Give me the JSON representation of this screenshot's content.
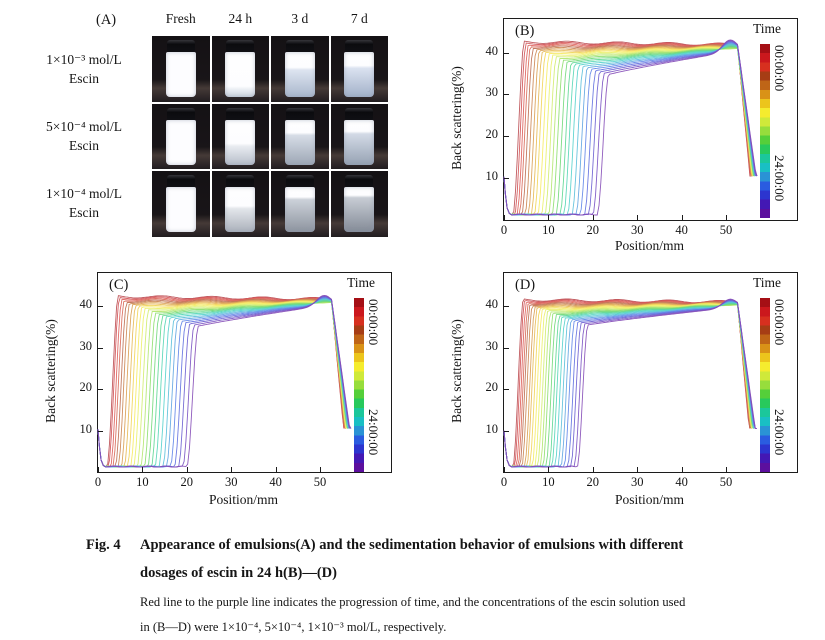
{
  "figure": {
    "background": "#ffffff"
  },
  "panelA": {
    "label": "(A)",
    "columns": [
      "Fresh",
      "24 h",
      "3 d",
      "7 d"
    ],
    "rows": [
      {
        "conc": "1×10⁻³ mol/L",
        "substance": "Escin",
        "cells": [
          {
            "cream": 100,
            "lower_top": "#ffffff",
            "lower_bottom": "#ffffff"
          },
          {
            "cream": 76,
            "lower_top": "#edf0f5",
            "lower_bottom": "#ccd4de"
          },
          {
            "cream": 34,
            "lower_top": "#dde4f0",
            "lower_bottom": "#a9b7cc"
          },
          {
            "cream": 30,
            "lower_top": "#dbe2f0",
            "lower_bottom": "#a2b1c9"
          }
        ]
      },
      {
        "conc": "5×10⁻⁴ mol/L",
        "substance": "Escin",
        "cells": [
          {
            "cream": 100,
            "lower_top": "#ffffff",
            "lower_bottom": "#ffffff"
          },
          {
            "cream": 52,
            "lower_top": "#e9ecf1",
            "lower_bottom": "#b6bdc9"
          },
          {
            "cream": 28,
            "lower_top": "#d6dce6",
            "lower_bottom": "#9da7b5"
          },
          {
            "cream": 25,
            "lower_top": "#d3dae6",
            "lower_bottom": "#96a2b3"
          }
        ]
      },
      {
        "conc": "1×10⁻⁴ mol/L",
        "substance": "Escin",
        "cells": [
          {
            "cream": 100,
            "lower_top": "#ffffff",
            "lower_bottom": "#ffffff"
          },
          {
            "cream": 42,
            "lower_top": "#e3e6eb",
            "lower_bottom": "#abb1bb"
          },
          {
            "cream": 22,
            "lower_top": "#ccd1d9",
            "lower_bottom": "#8d949f"
          },
          {
            "cream": 18,
            "lower_top": "#c7ccd4",
            "lower_bottom": "#848b97"
          }
        ]
      }
    ]
  },
  "colorbar": {
    "title": "Time",
    "top_label": "00:00:00",
    "bottom_label": "24:00:00",
    "colors": [
      "#a50f15",
      "#cb181d",
      "#d7301f",
      "#a63d15",
      "#bf6517",
      "#d99217",
      "#ecc51c",
      "#f5ec2e",
      "#cfe93a",
      "#97dd3c",
      "#55cf3a",
      "#28c95c",
      "#1bc79b",
      "#19bfc4",
      "#2a93d5",
      "#2a5ce0",
      "#2c35cf",
      "#4318b4",
      "#5c0f9e"
    ]
  },
  "chart_data": [
    {
      "id": "B",
      "type": "line",
      "label": "(B)",
      "xlabel": "Position/mm",
      "ylabel": "Back scattering(%)",
      "x_ticks": [
        0,
        10,
        20,
        30,
        40,
        50
      ],
      "y_ticks": [
        10,
        20,
        30,
        40
      ],
      "x_range_mm": [
        0,
        66
      ],
      "y_range_pct": [
        0,
        48
      ],
      "n_curves": 25,
      "time_span": [
        "00:00:00",
        "24:00:00"
      ],
      "curve_rise_x_mm": [
        2.0,
        2.4,
        2.9,
        3.4,
        4.0,
        4.7,
        5.4,
        6.1,
        6.8,
        7.6,
        8.4,
        9.2,
        10.0,
        10.8,
        11.7,
        12.6,
        13.4,
        14.3,
        15.3,
        16.2,
        17.1,
        18.1,
        19.0,
        20.0,
        21.0
      ],
      "model": {
        "spike_y": 10.3,
        "baseline": 1.3,
        "rise_width": 2.6,
        "plateau_first": 42.6,
        "plateau_last": 34.0,
        "converge_x": 50,
        "converge_y": 40.0,
        "bump_x": 51,
        "bump_amp": 3.0,
        "drop_start": 52.6,
        "end_first": 55.4,
        "end_last": 56.8,
        "end_y": 10.5
      }
    },
    {
      "id": "C",
      "type": "line",
      "label": "(C)",
      "xlabel": "Position/mm",
      "ylabel": "Back scattering(%)",
      "x_ticks": [
        0,
        10,
        20,
        30,
        40,
        50
      ],
      "y_ticks": [
        10,
        20,
        30,
        40
      ],
      "x_range_mm": [
        0,
        66
      ],
      "y_range_pct": [
        0,
        48
      ],
      "n_curves": 25,
      "time_span": [
        "00:00:00",
        "24:00:00"
      ],
      "curve_rise_x_mm": [
        2.0,
        2.3,
        2.8,
        3.3,
        3.9,
        4.5,
        5.2,
        5.9,
        6.6,
        7.3,
        8.0,
        8.8,
        9.6,
        10.4,
        11.2,
        12.0,
        12.8,
        13.7,
        14.6,
        15.4,
        16.3,
        17.2,
        18.1,
        19.1,
        20.0
      ],
      "model": {
        "spike_y": 10.3,
        "baseline": 1.3,
        "rise_width": 2.6,
        "plateau_first": 42.4,
        "plateau_last": 34.5,
        "converge_x": 50,
        "converge_y": 40.0,
        "bump_x": 51,
        "bump_amp": 2.6,
        "drop_start": 52.6,
        "end_first": 55.3,
        "end_last": 56.7,
        "end_y": 10.5
      }
    },
    {
      "id": "D",
      "type": "line",
      "label": "(D)",
      "xlabel": "Position/mm",
      "ylabel": "Back scattering(%)",
      "x_ticks": [
        0,
        10,
        20,
        30,
        40,
        50
      ],
      "y_ticks": [
        10,
        20,
        30,
        40
      ],
      "x_range_mm": [
        0,
        66
      ],
      "y_range_pct": [
        0,
        48
      ],
      "n_curves": 25,
      "time_span": [
        "00:00:00",
        "24:00:00"
      ],
      "curve_rise_x_mm": [
        2.0,
        2.3,
        2.7,
        3.1,
        3.5,
        4.0,
        4.6,
        5.1,
        5.7,
        6.3,
        6.9,
        7.5,
        8.1,
        8.7,
        9.4,
        10.1,
        10.7,
        11.4,
        12.1,
        12.8,
        13.5,
        14.3,
        15.0,
        15.8,
        16.5
      ],
      "model": {
        "spike_y": 10.0,
        "baseline": 1.3,
        "rise_width": 2.4,
        "plateau_first": 41.6,
        "plateau_last": 35.0,
        "converge_x": 50,
        "converge_y": 39.5,
        "bump_x": 51,
        "bump_amp": 2.2,
        "drop_start": 52.6,
        "end_first": 55.2,
        "end_last": 56.6,
        "end_y": 10.5
      }
    }
  ],
  "caption": {
    "fig_label": "Fig. 4",
    "title_line1": "Appearance of emulsions(A) and the sedimentation behavior of emulsions with different",
    "title_line2": "dosages of escin in 24 h(B)—(D)",
    "note_line1": "Red line to the purple line indicates the progression of time, and the concentrations of the escin solution used",
    "note_line2": "in (B—D) were 1×10⁻⁴, 5×10⁻⁴, 1×10⁻³ mol/L, respectively."
  }
}
